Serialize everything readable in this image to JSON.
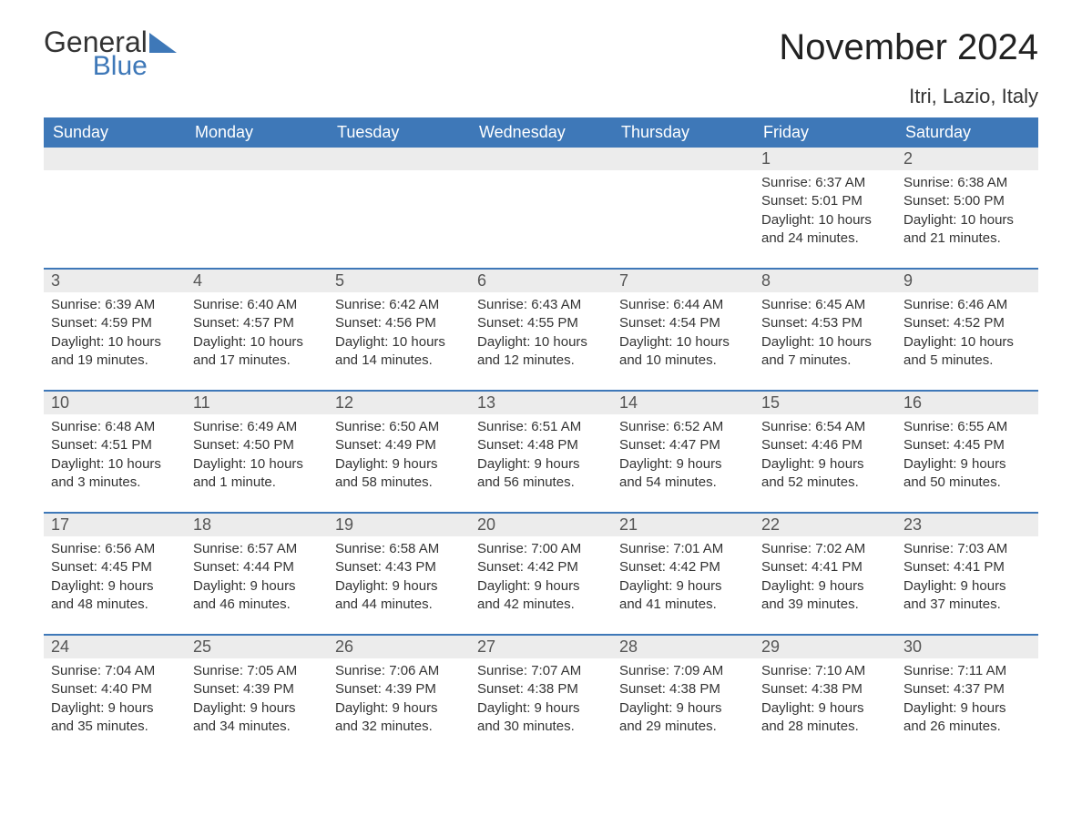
{
  "logo": {
    "general": "General",
    "blue": "Blue",
    "triangle_color": "#3e78b8"
  },
  "title": "November 2024",
  "location": "Itri, Lazio, Italy",
  "colors": {
    "header_bg": "#3e78b8",
    "header_text": "#ffffff",
    "daynum_bg": "#ececec",
    "row_divider": "#3e78b8",
    "text": "#333333",
    "background": "#ffffff"
  },
  "day_headers": [
    "Sunday",
    "Monday",
    "Tuesday",
    "Wednesday",
    "Thursday",
    "Friday",
    "Saturday"
  ],
  "weeks": [
    [
      {
        "day": "",
        "sunrise": "",
        "sunset": "",
        "daylight1": "",
        "daylight2": ""
      },
      {
        "day": "",
        "sunrise": "",
        "sunset": "",
        "daylight1": "",
        "daylight2": ""
      },
      {
        "day": "",
        "sunrise": "",
        "sunset": "",
        "daylight1": "",
        "daylight2": ""
      },
      {
        "day": "",
        "sunrise": "",
        "sunset": "",
        "daylight1": "",
        "daylight2": ""
      },
      {
        "day": "",
        "sunrise": "",
        "sunset": "",
        "daylight1": "",
        "daylight2": ""
      },
      {
        "day": "1",
        "sunrise": "Sunrise: 6:37 AM",
        "sunset": "Sunset: 5:01 PM",
        "daylight1": "Daylight: 10 hours",
        "daylight2": "and 24 minutes."
      },
      {
        "day": "2",
        "sunrise": "Sunrise: 6:38 AM",
        "sunset": "Sunset: 5:00 PM",
        "daylight1": "Daylight: 10 hours",
        "daylight2": "and 21 minutes."
      }
    ],
    [
      {
        "day": "3",
        "sunrise": "Sunrise: 6:39 AM",
        "sunset": "Sunset: 4:59 PM",
        "daylight1": "Daylight: 10 hours",
        "daylight2": "and 19 minutes."
      },
      {
        "day": "4",
        "sunrise": "Sunrise: 6:40 AM",
        "sunset": "Sunset: 4:57 PM",
        "daylight1": "Daylight: 10 hours",
        "daylight2": "and 17 minutes."
      },
      {
        "day": "5",
        "sunrise": "Sunrise: 6:42 AM",
        "sunset": "Sunset: 4:56 PM",
        "daylight1": "Daylight: 10 hours",
        "daylight2": "and 14 minutes."
      },
      {
        "day": "6",
        "sunrise": "Sunrise: 6:43 AM",
        "sunset": "Sunset: 4:55 PM",
        "daylight1": "Daylight: 10 hours",
        "daylight2": "and 12 minutes."
      },
      {
        "day": "7",
        "sunrise": "Sunrise: 6:44 AM",
        "sunset": "Sunset: 4:54 PM",
        "daylight1": "Daylight: 10 hours",
        "daylight2": "and 10 minutes."
      },
      {
        "day": "8",
        "sunrise": "Sunrise: 6:45 AM",
        "sunset": "Sunset: 4:53 PM",
        "daylight1": "Daylight: 10 hours",
        "daylight2": "and 7 minutes."
      },
      {
        "day": "9",
        "sunrise": "Sunrise: 6:46 AM",
        "sunset": "Sunset: 4:52 PM",
        "daylight1": "Daylight: 10 hours",
        "daylight2": "and 5 minutes."
      }
    ],
    [
      {
        "day": "10",
        "sunrise": "Sunrise: 6:48 AM",
        "sunset": "Sunset: 4:51 PM",
        "daylight1": "Daylight: 10 hours",
        "daylight2": "and 3 minutes."
      },
      {
        "day": "11",
        "sunrise": "Sunrise: 6:49 AM",
        "sunset": "Sunset: 4:50 PM",
        "daylight1": "Daylight: 10 hours",
        "daylight2": "and 1 minute."
      },
      {
        "day": "12",
        "sunrise": "Sunrise: 6:50 AM",
        "sunset": "Sunset: 4:49 PM",
        "daylight1": "Daylight: 9 hours",
        "daylight2": "and 58 minutes."
      },
      {
        "day": "13",
        "sunrise": "Sunrise: 6:51 AM",
        "sunset": "Sunset: 4:48 PM",
        "daylight1": "Daylight: 9 hours",
        "daylight2": "and 56 minutes."
      },
      {
        "day": "14",
        "sunrise": "Sunrise: 6:52 AM",
        "sunset": "Sunset: 4:47 PM",
        "daylight1": "Daylight: 9 hours",
        "daylight2": "and 54 minutes."
      },
      {
        "day": "15",
        "sunrise": "Sunrise: 6:54 AM",
        "sunset": "Sunset: 4:46 PM",
        "daylight1": "Daylight: 9 hours",
        "daylight2": "and 52 minutes."
      },
      {
        "day": "16",
        "sunrise": "Sunrise: 6:55 AM",
        "sunset": "Sunset: 4:45 PM",
        "daylight1": "Daylight: 9 hours",
        "daylight2": "and 50 minutes."
      }
    ],
    [
      {
        "day": "17",
        "sunrise": "Sunrise: 6:56 AM",
        "sunset": "Sunset: 4:45 PM",
        "daylight1": "Daylight: 9 hours",
        "daylight2": "and 48 minutes."
      },
      {
        "day": "18",
        "sunrise": "Sunrise: 6:57 AM",
        "sunset": "Sunset: 4:44 PM",
        "daylight1": "Daylight: 9 hours",
        "daylight2": "and 46 minutes."
      },
      {
        "day": "19",
        "sunrise": "Sunrise: 6:58 AM",
        "sunset": "Sunset: 4:43 PM",
        "daylight1": "Daylight: 9 hours",
        "daylight2": "and 44 minutes."
      },
      {
        "day": "20",
        "sunrise": "Sunrise: 7:00 AM",
        "sunset": "Sunset: 4:42 PM",
        "daylight1": "Daylight: 9 hours",
        "daylight2": "and 42 minutes."
      },
      {
        "day": "21",
        "sunrise": "Sunrise: 7:01 AM",
        "sunset": "Sunset: 4:42 PM",
        "daylight1": "Daylight: 9 hours",
        "daylight2": "and 41 minutes."
      },
      {
        "day": "22",
        "sunrise": "Sunrise: 7:02 AM",
        "sunset": "Sunset: 4:41 PM",
        "daylight1": "Daylight: 9 hours",
        "daylight2": "and 39 minutes."
      },
      {
        "day": "23",
        "sunrise": "Sunrise: 7:03 AM",
        "sunset": "Sunset: 4:41 PM",
        "daylight1": "Daylight: 9 hours",
        "daylight2": "and 37 minutes."
      }
    ],
    [
      {
        "day": "24",
        "sunrise": "Sunrise: 7:04 AM",
        "sunset": "Sunset: 4:40 PM",
        "daylight1": "Daylight: 9 hours",
        "daylight2": "and 35 minutes."
      },
      {
        "day": "25",
        "sunrise": "Sunrise: 7:05 AM",
        "sunset": "Sunset: 4:39 PM",
        "daylight1": "Daylight: 9 hours",
        "daylight2": "and 34 minutes."
      },
      {
        "day": "26",
        "sunrise": "Sunrise: 7:06 AM",
        "sunset": "Sunset: 4:39 PM",
        "daylight1": "Daylight: 9 hours",
        "daylight2": "and 32 minutes."
      },
      {
        "day": "27",
        "sunrise": "Sunrise: 7:07 AM",
        "sunset": "Sunset: 4:38 PM",
        "daylight1": "Daylight: 9 hours",
        "daylight2": "and 30 minutes."
      },
      {
        "day": "28",
        "sunrise": "Sunrise: 7:09 AM",
        "sunset": "Sunset: 4:38 PM",
        "daylight1": "Daylight: 9 hours",
        "daylight2": "and 29 minutes."
      },
      {
        "day": "29",
        "sunrise": "Sunrise: 7:10 AM",
        "sunset": "Sunset: 4:38 PM",
        "daylight1": "Daylight: 9 hours",
        "daylight2": "and 28 minutes."
      },
      {
        "day": "30",
        "sunrise": "Sunrise: 7:11 AM",
        "sunset": "Sunset: 4:37 PM",
        "daylight1": "Daylight: 9 hours",
        "daylight2": "and 26 minutes."
      }
    ]
  ]
}
